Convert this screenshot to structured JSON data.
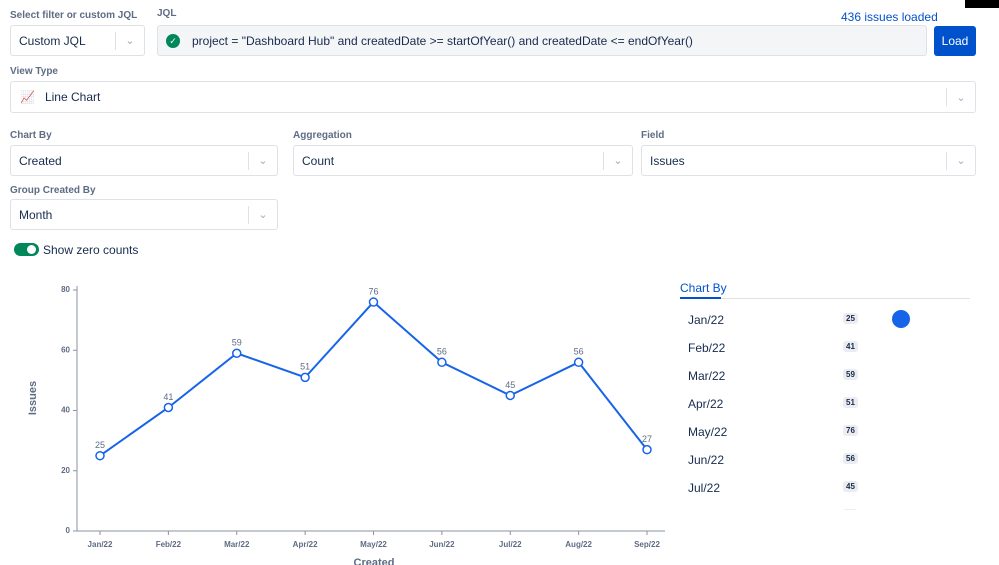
{
  "filter": {
    "label": "Select filter or custom JQL",
    "value": "Custom JQL"
  },
  "jql": {
    "label": "JQL",
    "query": "project = \"Dashboard Hub\" and createdDate >= startOfYear() and createdDate <= endOfYear()",
    "status": "436 issues loaded",
    "button": "Load"
  },
  "view_type": {
    "label": "View Type",
    "value": "Line Chart"
  },
  "chart_by": {
    "label": "Chart By",
    "value": "Created"
  },
  "aggregation": {
    "label": "Aggregation",
    "value": "Count"
  },
  "field": {
    "label": "Field",
    "value": "Issues"
  },
  "group_by": {
    "label": "Group Created By",
    "value": "Month"
  },
  "toggle": {
    "label": "Show zero counts"
  },
  "legend_panel": {
    "tab": "Chart By"
  },
  "chart_data": {
    "type": "line",
    "x_label": "Created",
    "y_label": "Issues",
    "categories": [
      "Jan/22",
      "Feb/22",
      "Mar/22",
      "Apr/22",
      "May/22",
      "Jun/22",
      "Jul/22",
      "Aug/22",
      "Sep/22"
    ],
    "values": [
      25,
      41,
      59,
      51,
      76,
      56,
      45,
      56,
      27
    ],
    "color": "#1764e8",
    "ylim": [
      0,
      80
    ],
    "yticks": [
      0,
      20,
      40,
      60,
      80
    ]
  }
}
